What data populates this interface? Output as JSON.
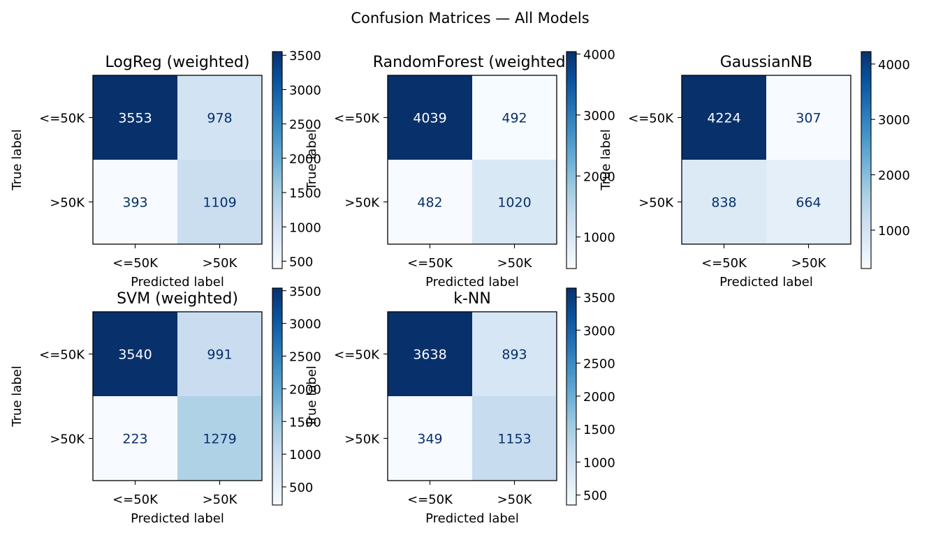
{
  "figure": {
    "suptitle": "Confusion Matrices — All Models"
  },
  "chart_data": [
    {
      "type": "heatmap",
      "title": "LogReg (weighted)",
      "xlabel": "Predicted label",
      "ylabel": "True label",
      "x_categories": [
        "<=50K",
        ">50K"
      ],
      "y_categories": [
        "<=50K",
        ">50K"
      ],
      "values": [
        [
          3553,
          978
        ],
        [
          393,
          1109
        ]
      ],
      "colormap": "Blues",
      "colorbar_ticks": [
        500,
        1000,
        1500,
        2000,
        2500,
        3000,
        3500
      ],
      "colorbar_range": [
        393,
        3553
      ]
    },
    {
      "type": "heatmap",
      "title": "RandomForest (weighted)",
      "xlabel": "Predicted label",
      "ylabel": "True label",
      "x_categories": [
        "<=50K",
        ">50K"
      ],
      "y_categories": [
        "<=50K",
        ">50K"
      ],
      "values": [
        [
          4039,
          492
        ],
        [
          482,
          1020
        ]
      ],
      "colormap": "Blues",
      "colorbar_ticks": [
        1000,
        2000,
        3000,
        4000
      ],
      "colorbar_range": [
        482,
        4039
      ]
    },
    {
      "type": "heatmap",
      "title": "GaussianNB",
      "xlabel": "Predicted label",
      "ylabel": "True label",
      "x_categories": [
        "<=50K",
        ">50K"
      ],
      "y_categories": [
        "<=50K",
        ">50K"
      ],
      "values": [
        [
          4224,
          307
        ],
        [
          838,
          664
        ]
      ],
      "colormap": "Blues",
      "colorbar_ticks": [
        1000,
        2000,
        3000,
        4000
      ],
      "colorbar_range": [
        307,
        4224
      ]
    },
    {
      "type": "heatmap",
      "title": "SVM (weighted)",
      "xlabel": "Predicted label",
      "ylabel": "True label",
      "x_categories": [
        "<=50K",
        ">50K"
      ],
      "y_categories": [
        "<=50K",
        ">50K"
      ],
      "values": [
        [
          3540,
          991
        ],
        [
          223,
          1279
        ]
      ],
      "colormap": "Blues",
      "colorbar_ticks": [
        500,
        1000,
        1500,
        2000,
        2500,
        3000,
        3500
      ],
      "colorbar_range": [
        223,
        3540
      ]
    },
    {
      "type": "heatmap",
      "title": "k-NN",
      "xlabel": "Predicted label",
      "ylabel": "True label",
      "x_categories": [
        "<=50K",
        ">50K"
      ],
      "y_categories": [
        "<=50K",
        ">50K"
      ],
      "values": [
        [
          3638,
          893
        ],
        [
          349,
          1153
        ]
      ],
      "colormap": "Blues",
      "colorbar_ticks": [
        500,
        1000,
        1500,
        2000,
        2500,
        3000,
        3500
      ],
      "colorbar_range": [
        349,
        3638
      ]
    }
  ]
}
